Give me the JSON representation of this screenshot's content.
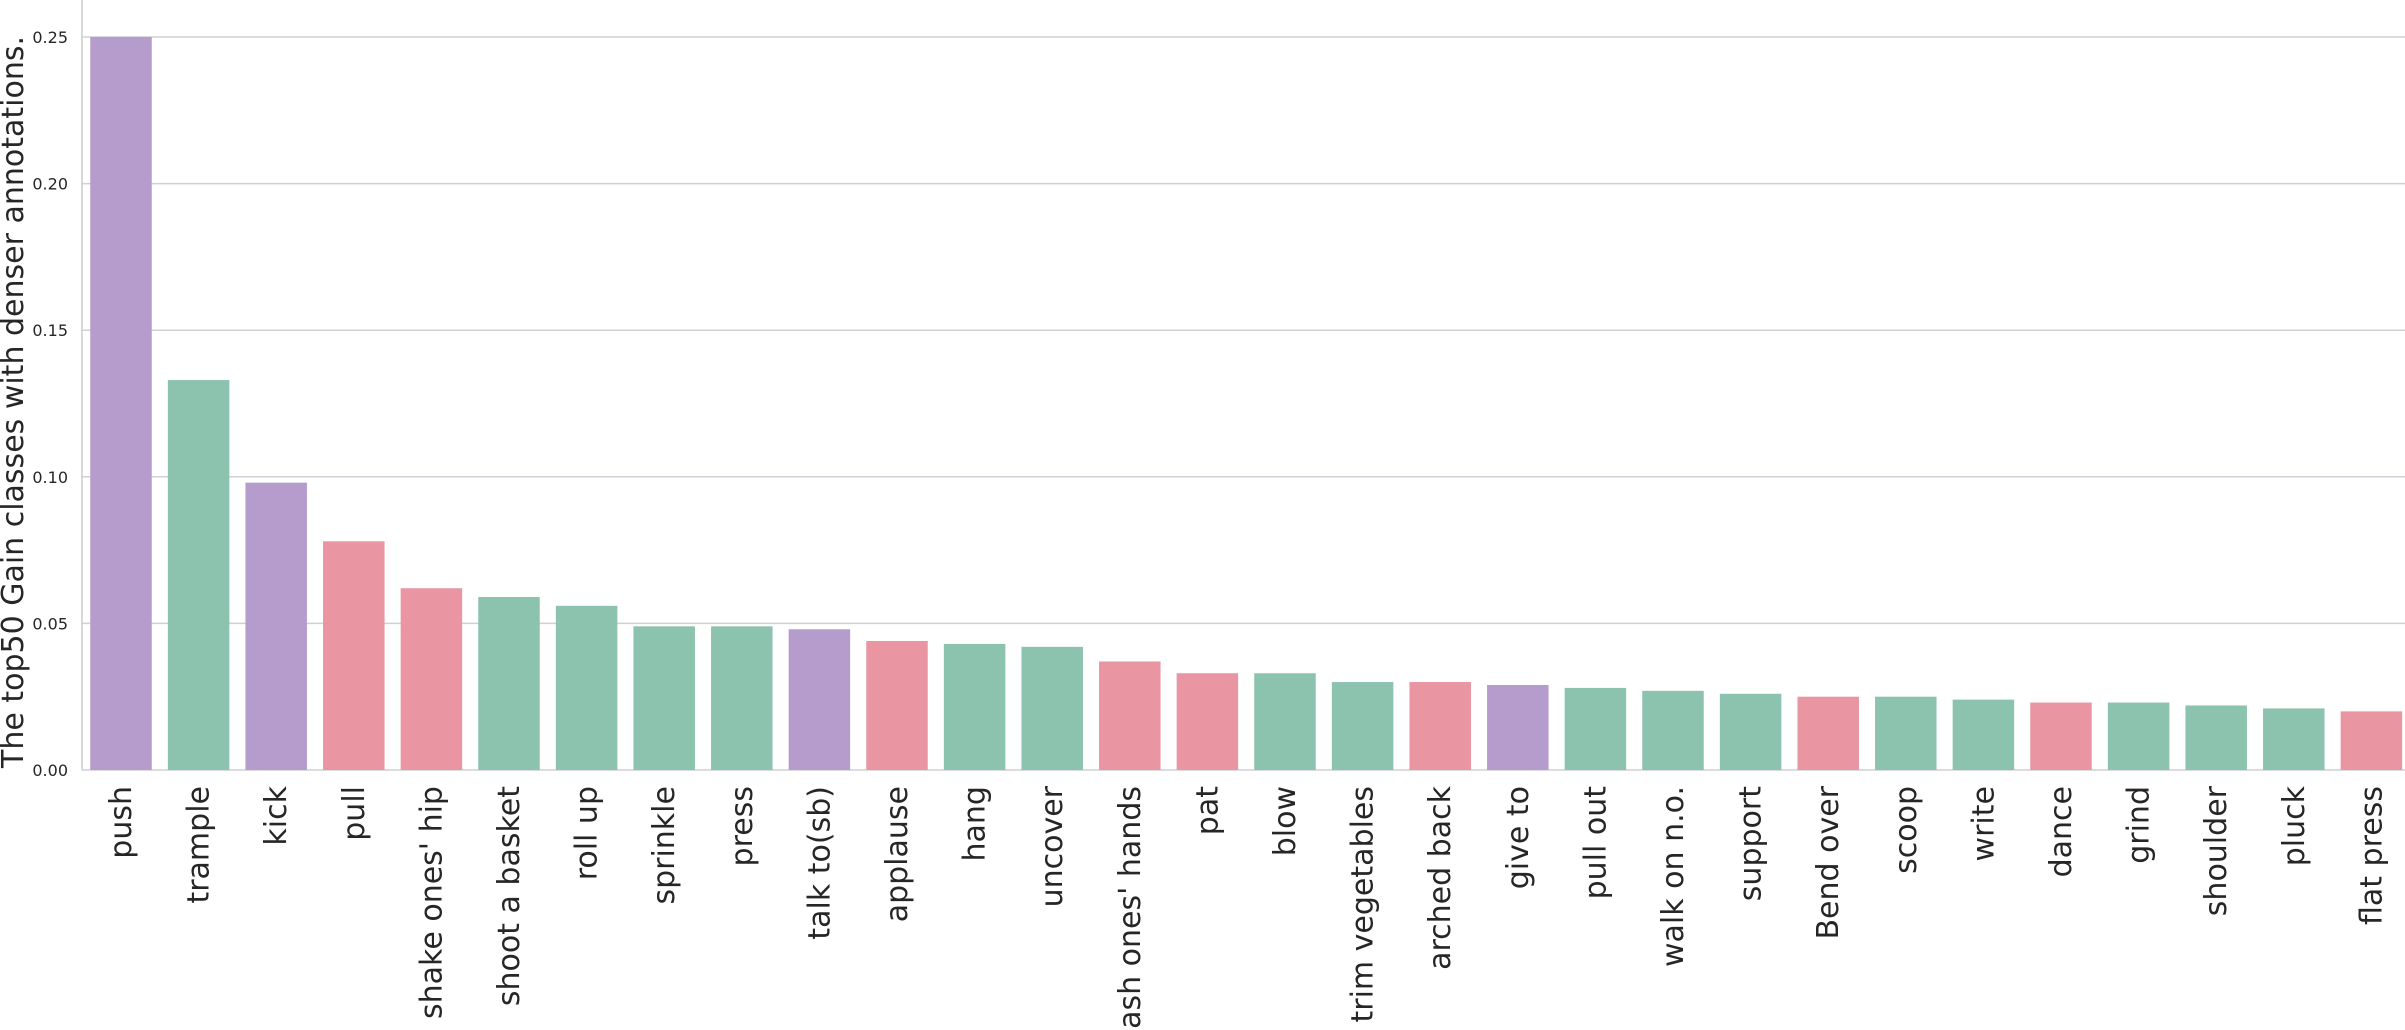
{
  "chart_data": {
    "type": "bar",
    "ylabel": "The top50 Gain classes with denser annotations.",
    "ylim": [
      0,
      0.25
    ],
    "yticks": [
      "0.00",
      "0.05",
      "0.10",
      "0.15",
      "0.20",
      "0.25"
    ],
    "grid": true,
    "categories": [
      "push",
      "trample",
      "kick",
      "pull",
      "shake ones' hip",
      "shoot a basket",
      "roll up",
      "sprinkle",
      "press",
      "talk to(sb)",
      "applause",
      "hang",
      "uncover",
      "wash ones' hands",
      "pat",
      "blow",
      "trim vegetables",
      "arched back",
      "give to",
      "pull out",
      "walk on n.o.",
      "support",
      "Bend over",
      "scoop",
      "write",
      "dance",
      "grind",
      "shoulder",
      "pluck",
      "flat press"
    ],
    "values": [
      0.25,
      0.133,
      0.098,
      0.078,
      0.062,
      0.059,
      0.056,
      0.049,
      0.049,
      0.048,
      0.044,
      0.043,
      0.042,
      0.037,
      0.033,
      0.033,
      0.03,
      0.03,
      0.029,
      0.028,
      0.027,
      0.026,
      0.025,
      0.025,
      0.024,
      0.023,
      0.023,
      0.022,
      0.021,
      0.02
    ],
    "colors": [
      "#b59ccd",
      "#8cc3ae",
      "#b59ccd",
      "#e995a2",
      "#e995a2",
      "#8cc3ae",
      "#8cc3ae",
      "#8cc3ae",
      "#8cc3ae",
      "#b59ccd",
      "#e995a2",
      "#8cc3ae",
      "#8cc3ae",
      "#e995a2",
      "#e995a2",
      "#8cc3ae",
      "#8cc3ae",
      "#e995a2",
      "#b59ccd",
      "#8cc3ae",
      "#8cc3ae",
      "#8cc3ae",
      "#e995a2",
      "#8cc3ae",
      "#8cc3ae",
      "#e995a2",
      "#8cc3ae",
      "#8cc3ae",
      "#8cc3ae",
      "#e995a2"
    ]
  }
}
